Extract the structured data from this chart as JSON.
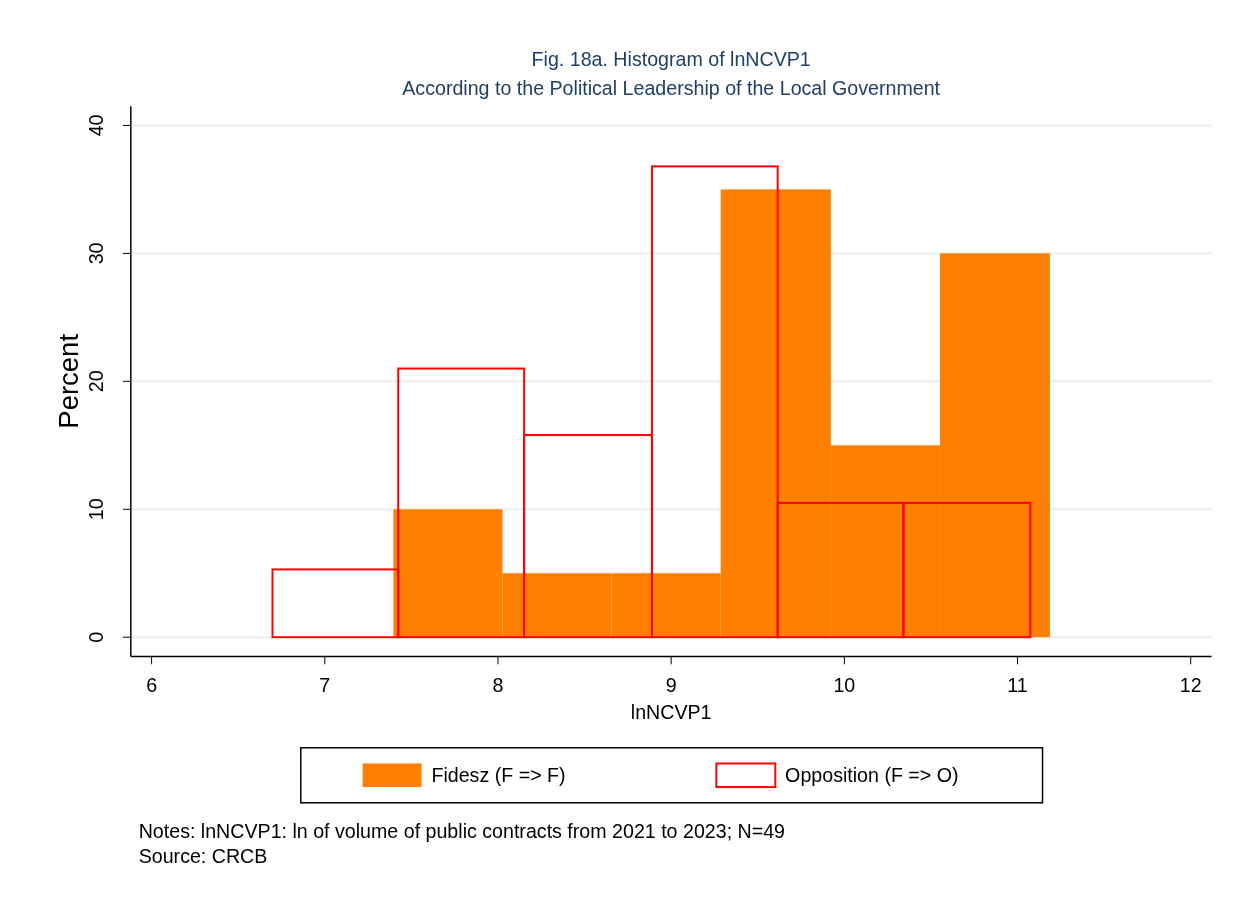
{
  "chart_data": {
    "type": "histogram",
    "title": "Fig. 18a. Histogram of lnNCVP1",
    "subtitle": "According to the Political Leadership of the Local Government",
    "xlabel": "lnNCVP1",
    "ylabel": "Percent",
    "bins": [
      7.396,
      8.026,
      8.656,
      9.286,
      9.922,
      10.552,
      11.187
    ],
    "series": [
      {
        "name": "Fidesz (F => F)",
        "color": "#ff8000",
        "values": [
          10,
          5,
          5,
          35,
          15,
          30
        ]
      },
      {
        "name": "Opposition (F => O)",
        "color": "#ff0000",
        "line_style": "solid",
        "bins": [
          6.698,
          7.424,
          8.151,
          8.889,
          9.615,
          10.341,
          11.074
        ],
        "values": [
          5.3,
          21,
          15.8,
          36.8,
          10.5,
          10.5
        ]
      }
    ],
    "xlim": [
      5.88,
      12.12
    ],
    "xticks": [
      6,
      7,
      8,
      9,
      10,
      11,
      12
    ],
    "ylim": [
      -1.5,
      41.5
    ],
    "yticks": [
      0,
      10,
      20,
      30,
      40
    ],
    "grid": "y",
    "legend": "bottom",
    "annotations": [
      "Notes: lnNCVP1: ln of volume of public contracts from 2021 to 2023; N=49",
      "Source: CRCB"
    ]
  }
}
